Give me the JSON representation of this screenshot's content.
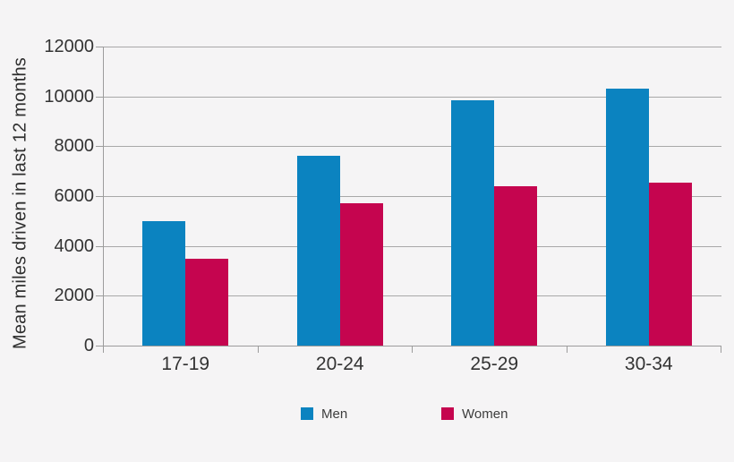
{
  "chart_data": {
    "type": "bar",
    "grouped": true,
    "categories": [
      "17-19",
      "20-24",
      "25-29",
      "30-34"
    ],
    "series": [
      {
        "name": "Men",
        "color": "#0b83c0",
        "values": [
          5000,
          7600,
          9850,
          10300
        ]
      },
      {
        "name": "Women",
        "color": "#c5054f",
        "values": [
          3500,
          5700,
          6400,
          6550
        ]
      }
    ],
    "title": "",
    "xlabel": "",
    "ylabel": "Mean miles driven in last 12 months",
    "ylim": [
      0,
      12000
    ],
    "yticks": [
      0,
      2000,
      4000,
      6000,
      8000,
      10000,
      12000
    ],
    "grid": "horizontal",
    "legend_position": "bottom",
    "colors": {
      "background": "#f5f4f5",
      "gridline": "#a8a8a8",
      "axis": "#9c9c9c",
      "text": "#333333"
    }
  }
}
